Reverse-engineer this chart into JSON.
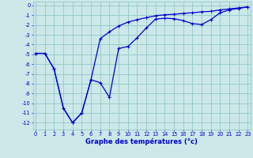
{
  "xlabel": "Graphe des températures (°c)",
  "bg_color": "#cce8e8",
  "grid_color": "#99cccc",
  "line_color": "#0000cc",
  "x_ticks": [
    0,
    1,
    2,
    3,
    4,
    5,
    6,
    7,
    8,
    9,
    10,
    11,
    12,
    13,
    14,
    15,
    16,
    17,
    18,
    19,
    20,
    21,
    22,
    23
  ],
  "y_ticks": [
    0,
    -1,
    -2,
    -3,
    -4,
    -5,
    -6,
    -7,
    -8,
    -9,
    -10,
    -11,
    -12
  ],
  "xlim": [
    -0.3,
    23.3
  ],
  "ylim": [
    -12.7,
    0.4
  ],
  "line1_x": [
    0,
    1,
    2,
    3,
    4,
    5,
    6,
    7,
    8,
    9,
    10,
    11,
    12,
    13,
    14,
    15,
    16,
    17,
    18,
    19,
    20,
    21,
    22,
    23
  ],
  "line1_y": [
    -4.9,
    -4.9,
    -6.5,
    -10.5,
    -12.0,
    -11.0,
    -7.6,
    -7.9,
    -9.4,
    -4.4,
    -4.2,
    -3.3,
    -2.3,
    -1.4,
    -1.3,
    -1.35,
    -1.55,
    -1.85,
    -1.95,
    -1.45,
    -0.75,
    -0.45,
    -0.3,
    -0.15
  ],
  "line2_x": [
    0,
    1,
    2,
    3,
    4,
    5,
    6,
    7,
    8,
    9,
    10,
    11,
    12,
    13,
    14,
    15,
    16,
    17,
    18,
    19,
    20,
    21,
    22,
    23
  ],
  "line2_y": [
    -4.9,
    -4.9,
    -6.5,
    -10.5,
    -12.0,
    -11.0,
    -7.6,
    -3.4,
    -2.7,
    -2.1,
    -1.7,
    -1.45,
    -1.25,
    -1.05,
    -0.95,
    -0.9,
    -0.8,
    -0.75,
    -0.65,
    -0.6,
    -0.45,
    -0.35,
    -0.25,
    -0.15
  ],
  "marker_size": 2.5,
  "linewidth": 0.9,
  "xlabel_fontsize": 6.0,
  "tick_fontsize": 4.8
}
